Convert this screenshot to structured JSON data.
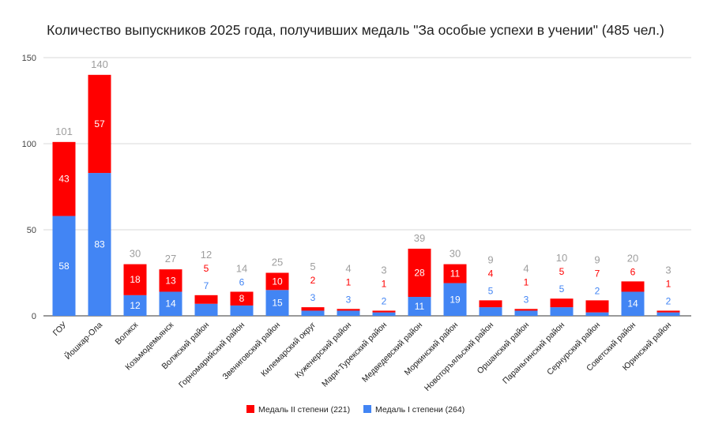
{
  "chart_data": {
    "type": "bar",
    "stacked": true,
    "title": "Количество выпускников 2025 года, получивших медаль \"За особые успехи в учении\" (485 чел.)",
    "categories": [
      "ГОУ",
      "Йошкар-Ола",
      "Волжск",
      "Козьмодемьянск",
      "Волжский район",
      "Горномарийский район",
      "Звениговский район",
      "Килемарский округ",
      "Куженерский район",
      "Мари-Турекский район",
      "Медведевский район",
      "Моркинский район",
      "Новоторъяльский район",
      "Оршанский район",
      "Параньгинский район",
      "Сернурский район",
      "Советский район",
      "Юринский район"
    ],
    "series": [
      {
        "name": "Медаль I степени (264)",
        "color": "#4285f4",
        "label_color": "#4285f4",
        "values": [
          58,
          83,
          12,
          14,
          7,
          6,
          15,
          3,
          3,
          2,
          11,
          19,
          5,
          3,
          5,
          2,
          14,
          2
        ]
      },
      {
        "name": "Медаль II степени (221)",
        "color": "#ff0000",
        "label_color": "#ff0000",
        "values": [
          43,
          57,
          18,
          13,
          5,
          8,
          10,
          2,
          1,
          1,
          28,
          11,
          4,
          1,
          5,
          7,
          6,
          1
        ]
      }
    ],
    "totals": [
      101,
      140,
      30,
      27,
      12,
      14,
      25,
      5,
      4,
      3,
      39,
      30,
      9,
      4,
      10,
      9,
      20,
      3
    ],
    "yticks": [
      0,
      50,
      100,
      150
    ],
    "ylim": [
      0,
      150
    ],
    "xlabel": "",
    "ylabel": "",
    "grid": true,
    "legend_position": "bottom",
    "legend_order": [
      1,
      0
    ]
  }
}
